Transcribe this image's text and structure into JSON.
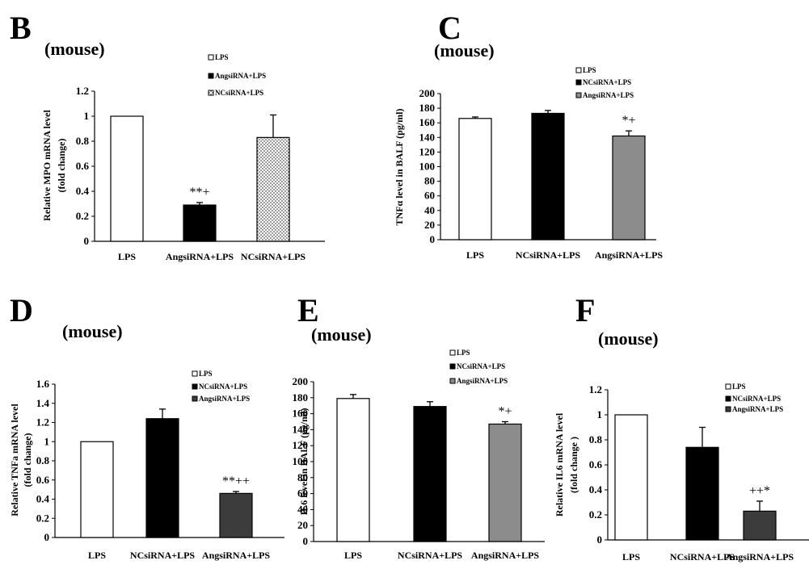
{
  "chart_data": [
    {
      "type": "bar",
      "panel": "B",
      "subtitle": "(mouse)",
      "ylabel": [
        "Relative MPO mRNA level",
        "(fold change)"
      ],
      "ylim": [
        0,
        1.2
      ],
      "yticks": [
        "0",
        "0.2",
        "0.4",
        "0.6",
        "0.8",
        "1",
        "1.2"
      ],
      "categories": [
        "LPS",
        "AngsiRNA+LPS",
        "NCsiRNA+LPS"
      ],
      "values": [
        1.0,
        0.29,
        0.83
      ],
      "errors": [
        0,
        0.02,
        0.18
      ],
      "bar_fills": [
        "white",
        "black",
        "dots"
      ],
      "annotations": [
        "",
        "**+",
        ""
      ],
      "legend": [
        "LPS",
        "AngsiRNA+LPS",
        "NCsiRNA+LPS"
      ],
      "legend_fills": [
        "white",
        "black",
        "dots"
      ],
      "legend_placement": "top-right",
      "grid": false
    },
    {
      "type": "bar",
      "panel": "C",
      "subtitle": "(mouse)",
      "ylabel": [
        "TNFα level in BALF (pg/ml)"
      ],
      "ylim": [
        0,
        200
      ],
      "yticks": [
        "0",
        "20",
        "40",
        "60",
        "80",
        "100",
        "120",
        "140",
        "160",
        "180",
        "200"
      ],
      "categories": [
        "LPS",
        "NCsiRNA+LPS",
        "AngsiRNA+LPS"
      ],
      "values": [
        166,
        173,
        142
      ],
      "errors": [
        2,
        4,
        7
      ],
      "bar_fills": [
        "white",
        "black",
        "gray"
      ],
      "annotations": [
        "",
        "",
        "*+"
      ],
      "legend": [
        "LPS",
        "NCsiRNA+LPS",
        "AngsiRNA+LPS"
      ],
      "legend_fills": [
        "white",
        "black",
        "gray"
      ],
      "legend_placement": "top-right",
      "grid": false
    },
    {
      "type": "bar",
      "panel": "D",
      "subtitle": "(mouse)",
      "ylabel": [
        "Relative TNFa mRNA level",
        "(fold change)"
      ],
      "ylim": [
        0,
        1.6
      ],
      "yticks": [
        "0",
        "0.2",
        "0.4",
        "0.6",
        "0.8",
        "1",
        "1.2",
        "1.4",
        "1.6"
      ],
      "categories": [
        "LPS",
        "NCsiRNA+LPS",
        "AngsiRNA+LPS"
      ],
      "values": [
        1.0,
        1.24,
        0.46
      ],
      "errors": [
        0,
        0.1,
        0.02
      ],
      "bar_fills": [
        "white",
        "black",
        "darkgray"
      ],
      "annotations": [
        "",
        "",
        "**++"
      ],
      "legend": [
        "LPS",
        "NCsiRNA+LPS",
        "AngsiRNA+LPS"
      ],
      "legend_fills": [
        "white",
        "black",
        "darkgray"
      ],
      "legend_placement": "top-right",
      "grid": false
    },
    {
      "type": "bar",
      "panel": "E",
      "subtitle": "(mouse)",
      "ylabel": [
        "IL6 level in BALF (pg/ml)"
      ],
      "ylim": [
        0,
        200
      ],
      "yticks": [
        "0",
        "20",
        "40",
        "60",
        "80",
        "100",
        "120",
        "140",
        "160",
        "180",
        "200"
      ],
      "categories": [
        "LPS",
        "NCsiRNA+LPS",
        "AngsiRNA+LPS"
      ],
      "values": [
        179,
        169,
        147
      ],
      "errors": [
        5,
        6,
        3
      ],
      "bar_fills": [
        "white",
        "black",
        "gray"
      ],
      "annotations": [
        "",
        "",
        "*+"
      ],
      "legend": [
        "LPS",
        "NCsiRNA+LPS",
        "AngsiRNA+LPS"
      ],
      "legend_fills": [
        "white",
        "black",
        "gray"
      ],
      "legend_placement": "top-right",
      "grid": false
    },
    {
      "type": "bar",
      "panel": "F",
      "subtitle": "(mouse)",
      "ylabel": [
        "Relative IL6 mRNA level",
        "(fold change )"
      ],
      "ylim": [
        0,
        1.2
      ],
      "yticks": [
        "0",
        "0.2",
        "0.4",
        "0.6",
        "0.8",
        "1",
        "1.2"
      ],
      "categories": [
        "LPS",
        "NCsiRNA+LPS",
        "AngsiRNA+LPS"
      ],
      "values": [
        1.0,
        0.74,
        0.23
      ],
      "errors": [
        0,
        0.16,
        0.08
      ],
      "bar_fills": [
        "white",
        "black",
        "darkgray"
      ],
      "annotations": [
        "",
        "",
        "++*"
      ],
      "legend": [
        "LPS",
        "NCsiRNA+LPS",
        "AngsiRNA+LPS"
      ],
      "legend_fills": [
        "white",
        "black",
        "darkgray"
      ],
      "legend_placement": "top-right",
      "grid": false
    }
  ],
  "colors": {
    "white": "#ffffff",
    "black": "#000000",
    "gray": "#8c8c8c",
    "darkgray": "#3c3c3c",
    "dots_bg": "#ffffff",
    "dots_fg": "#555555"
  }
}
